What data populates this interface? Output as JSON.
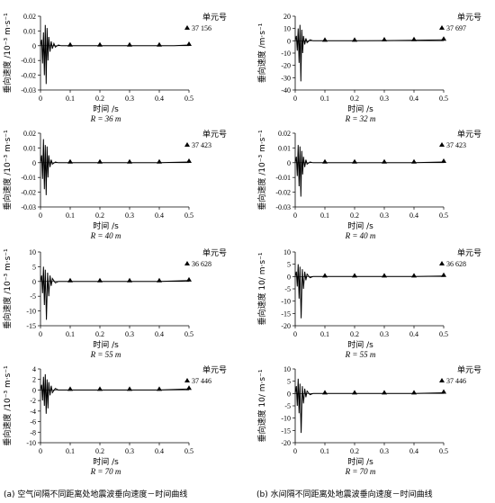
{
  "figure": {
    "captions": [
      "(a) 空气间隔不同距离处地震波垂向速度－时间曲线",
      "(b) 水间隔不同距离处地震波垂向速度－时间曲线"
    ]
  },
  "chart_data": [
    {
      "type": "line",
      "id": "a1",
      "col": 0,
      "row": 0,
      "ylabel": "垂向速度 /10⁻³ m·s⁻¹",
      "xlabel": "时间 /s",
      "caption": "R = 36 m",
      "xlim": [
        0,
        0.5
      ],
      "ylim": [
        -0.03,
        0.02
      ],
      "xticks": [
        0,
        0.1,
        0.2,
        0.3,
        0.4,
        0.5
      ],
      "xticklabels": [
        "0",
        "0.1",
        "0.2",
        "0.3",
        "0.4",
        "0.5"
      ],
      "yticks": [
        -0.03,
        -0.02,
        -0.01,
        0,
        0.01,
        0.02
      ],
      "yticklabels": [
        "-0.03",
        "-0.02",
        "-0.01",
        "0",
        "0.01",
        "0.02"
      ],
      "legend": {
        "title": "单元号",
        "label": "37 156",
        "marker": "triangle"
      },
      "series": [
        {
          "x": [
            0,
            0.004,
            0.007,
            0.01,
            0.013,
            0.016,
            0.019,
            0.022,
            0.025,
            0.028,
            0.032,
            0.036,
            0.04,
            0.045,
            0.05,
            0.06,
            0.07,
            0.08,
            0.1,
            0.15,
            0.2,
            0.25,
            0.3,
            0.35,
            0.4,
            0.45,
            0.5
          ],
          "y": [
            0,
            0.004,
            -0.012,
            0.009,
            -0.02,
            0.014,
            -0.026,
            0.012,
            -0.01,
            0.006,
            -0.004,
            0.003,
            -0.002,
            0.0015,
            -0.001,
            0.0005,
            0,
            0,
            0,
            0,
            0,
            0,
            0,
            0,
            0,
            0,
            0.0005
          ],
          "markers_x": [
            0.1,
            0.2,
            0.3,
            0.4,
            0.5
          ]
        }
      ]
    },
    {
      "type": "line",
      "id": "b1",
      "col": 1,
      "row": 0,
      "ylabel": "垂向速度 /m·s⁻¹",
      "xlabel": "时间 /s",
      "caption": "R = 32 m",
      "xlim": [
        0,
        0.5
      ],
      "ylim": [
        -40,
        20
      ],
      "xticks": [
        0,
        0.1,
        0.2,
        0.3,
        0.4,
        0.5
      ],
      "xticklabels": [
        "0",
        "0.1",
        "0.2",
        "0.3",
        "0.4",
        "0.5"
      ],
      "yticks": [
        -40,
        -30,
        -20,
        -10,
        0,
        10,
        20
      ],
      "yticklabels": [
        "-40",
        "-30",
        "-20",
        "-10",
        "0",
        "10",
        "20"
      ],
      "legend": {
        "title": "单元号",
        "label": "37 697",
        "marker": "triangle"
      },
      "series": [
        {
          "x": [
            0,
            0.004,
            0.007,
            0.01,
            0.013,
            0.016,
            0.019,
            0.022,
            0.025,
            0.028,
            0.032,
            0.036,
            0.04,
            0.05,
            0.06,
            0.08,
            0.1,
            0.2,
            0.3,
            0.4,
            0.5
          ],
          "y": [
            0,
            4,
            -8,
            10,
            -18,
            13,
            -33,
            9,
            -10,
            4,
            -3,
            2,
            -1.5,
            0.8,
            0,
            0,
            0,
            0,
            0.2,
            0.4,
            0.8
          ],
          "markers_x": [
            0.1,
            0.2,
            0.3,
            0.4,
            0.5
          ]
        }
      ]
    },
    {
      "type": "line",
      "id": "a2",
      "col": 0,
      "row": 1,
      "ylabel": "垂向速度 /10⁻³ m·s⁻¹",
      "xlabel": "时间 /s",
      "caption": "R = 40 m",
      "xlim": [
        0,
        0.5
      ],
      "ylim": [
        -0.03,
        0.02
      ],
      "xticks": [
        0,
        0.1,
        0.2,
        0.3,
        0.4,
        0.5
      ],
      "xticklabels": [
        "0",
        "0.1",
        "0.2",
        "0.3",
        "0.4",
        "0.5"
      ],
      "yticks": [
        -0.03,
        -0.02,
        -0.01,
        0,
        0.01,
        0.02
      ],
      "yticklabels": [
        "-0.03",
        "-0.02",
        "-0.01",
        "0",
        "0.01",
        "0.02"
      ],
      "legend": {
        "title": "单元号",
        "label": "37 423",
        "marker": "triangle"
      },
      "series": [
        {
          "x": [
            0,
            0.004,
            0.007,
            0.01,
            0.013,
            0.016,
            0.019,
            0.022,
            0.025,
            0.028,
            0.032,
            0.036,
            0.04,
            0.05,
            0.06,
            0.08,
            0.1,
            0.2,
            0.3,
            0.4,
            0.5
          ],
          "y": [
            0,
            0.005,
            -0.011,
            0.016,
            -0.018,
            0.012,
            -0.022,
            0.011,
            -0.01,
            0.005,
            -0.003,
            0.002,
            -0.001,
            0.0005,
            0,
            0,
            0,
            0,
            0,
            0,
            0.0005
          ],
          "markers_x": [
            0.1,
            0.2,
            0.3,
            0.4,
            0.5
          ]
        }
      ]
    },
    {
      "type": "line",
      "id": "b2",
      "col": 1,
      "row": 1,
      "ylabel": "垂向速度 /10⁻³ m·s⁻¹",
      "xlabel": "时间 /s",
      "caption": "R = 40 m",
      "xlim": [
        0,
        0.5
      ],
      "ylim": [
        -0.03,
        0.02
      ],
      "xticks": [
        0,
        0.1,
        0.2,
        0.3,
        0.4,
        0.5
      ],
      "xticklabels": [
        "0",
        "0.1",
        "0.2",
        "0.3",
        "0.4",
        "0.5"
      ],
      "yticks": [
        -0.03,
        -0.02,
        -0.01,
        0,
        0.01,
        0.02
      ],
      "yticklabels": [
        "-0.03",
        "-0.02",
        "-0.01",
        "0",
        "0.01",
        "0.02"
      ],
      "legend": {
        "title": "单元号",
        "label": "37 423",
        "marker": "triangle"
      },
      "series": [
        {
          "x": [
            0,
            0.004,
            0.007,
            0.01,
            0.013,
            0.016,
            0.019,
            0.022,
            0.025,
            0.028,
            0.032,
            0.036,
            0.04,
            0.05,
            0.06,
            0.08,
            0.1,
            0.2,
            0.3,
            0.4,
            0.5
          ],
          "y": [
            0,
            0.004,
            -0.009,
            0.012,
            -0.016,
            0.011,
            -0.023,
            0.008,
            -0.008,
            0.004,
            -0.003,
            0.002,
            -0.001,
            0.0005,
            0,
            0,
            0,
            0,
            0,
            0,
            0.0005
          ],
          "markers_x": [
            0.1,
            0.2,
            0.3,
            0.4,
            0.5
          ]
        }
      ]
    },
    {
      "type": "line",
      "id": "a3",
      "col": 0,
      "row": 2,
      "ylabel": "垂向速度 /10⁻³ m·s⁻¹",
      "xlabel": "时间 /s",
      "caption": "R = 55 m",
      "xlim": [
        0,
        0.5
      ],
      "ylim": [
        -15,
        10
      ],
      "xticks": [
        0,
        0.1,
        0.2,
        0.3,
        0.4,
        0.5
      ],
      "xticklabels": [
        "0",
        "0.1",
        "0.2",
        "0.3",
        "0.4",
        "0.5"
      ],
      "yticks": [
        -15,
        -10,
        -5,
        0,
        5,
        10
      ],
      "yticklabels": [
        "-15",
        "-10",
        "-5",
        "0",
        "5",
        "10"
      ],
      "legend": {
        "title": "单元号",
        "label": "36 628",
        "marker": "triangle"
      },
      "series": [
        {
          "x": [
            0,
            0.004,
            0.007,
            0.01,
            0.013,
            0.016,
            0.02,
            0.024,
            0.028,
            0.032,
            0.036,
            0.04,
            0.05,
            0.06,
            0.08,
            0.1,
            0.2,
            0.3,
            0.4,
            0.5
          ],
          "y": [
            0,
            2,
            -4,
            5,
            -8,
            4,
            -13,
            3,
            -5,
            2,
            -1.5,
            1,
            -0.5,
            0,
            0,
            0,
            0,
            0,
            0,
            0.3
          ],
          "markers_x": [
            0.1,
            0.2,
            0.3,
            0.4,
            0.5
          ]
        }
      ]
    },
    {
      "type": "line",
      "id": "b3",
      "col": 1,
      "row": 2,
      "ylabel": "垂向速度 10/ m·s⁻¹",
      "xlabel": "时间 /s",
      "caption": "R = 55 m",
      "xlim": [
        0,
        0.5
      ],
      "ylim": [
        -20,
        10
      ],
      "xticks": [
        0,
        0.1,
        0.2,
        0.3,
        0.4,
        0.5
      ],
      "xticklabels": [
        "0",
        "0.1",
        "0.2",
        "0.3",
        "0.4",
        "0.5"
      ],
      "yticks": [
        -20,
        -15,
        -10,
        -5,
        0,
        5,
        10
      ],
      "yticklabels": [
        "-20",
        "-15",
        "-10",
        "-5",
        "0",
        "5",
        "10"
      ],
      "legend": {
        "title": "单元号",
        "label": "36 628",
        "marker": "triangle"
      },
      "series": [
        {
          "x": [
            0,
            0.004,
            0.007,
            0.01,
            0.013,
            0.016,
            0.02,
            0.024,
            0.028,
            0.032,
            0.036,
            0.04,
            0.05,
            0.06,
            0.08,
            0.1,
            0.2,
            0.3,
            0.4,
            0.5
          ],
          "y": [
            0,
            2,
            -4,
            5,
            -9,
            4,
            -17,
            3,
            -5,
            2,
            -1.5,
            1,
            -0.5,
            0,
            0,
            0,
            0,
            0,
            0,
            0.2
          ],
          "markers_x": [
            0.1,
            0.2,
            0.3,
            0.4,
            0.5
          ]
        }
      ]
    },
    {
      "type": "line",
      "id": "a4",
      "col": 0,
      "row": 3,
      "ylabel": "垂向速度 /10⁻³ m·s⁻¹",
      "xlabel": "时间 /s",
      "caption": "R = 70 m",
      "xlim": [
        0,
        0.5
      ],
      "ylim": [
        -10,
        4
      ],
      "xticks": [
        0,
        0.1,
        0.2,
        0.3,
        0.4,
        0.5
      ],
      "xticklabels": [
        "0",
        "0.1",
        "0.2",
        "0.3",
        "0.4",
        "0.5"
      ],
      "yticks": [
        -10,
        -8,
        -6,
        -4,
        -2,
        0,
        2,
        4
      ],
      "yticklabels": [
        "-10",
        "-8",
        "-6",
        "-4",
        "-2",
        "0",
        "2",
        "4"
      ],
      "legend": {
        "title": "单元号",
        "label": "37 446",
        "marker": "triangle"
      },
      "series": [
        {
          "x": [
            0,
            0.004,
            0.007,
            0.01,
            0.013,
            0.016,
            0.019,
            0.022,
            0.025,
            0.028,
            0.032,
            0.036,
            0.04,
            0.05,
            0.06,
            0.08,
            0.1,
            0.2,
            0.3,
            0.4,
            0.5
          ],
          "y": [
            0,
            1,
            -2,
            2.5,
            -3,
            3,
            -4.5,
            2,
            -3.5,
            1.5,
            -1,
            0.8,
            -0.5,
            0.3,
            0,
            0,
            0,
            0,
            0,
            0,
            0.2
          ],
          "markers_x": [
            0.1,
            0.2,
            0.3,
            0.4,
            0.5
          ]
        }
      ]
    },
    {
      "type": "line",
      "id": "b4",
      "col": 1,
      "row": 3,
      "ylabel": "垂向速度 10/ m·s⁻¹",
      "xlabel": "时间 /s",
      "caption": "R = 70 m",
      "xlim": [
        0,
        0.5
      ],
      "ylim": [
        -20,
        10
      ],
      "xticks": [
        0,
        0.1,
        0.2,
        0.3,
        0.4,
        0.5
      ],
      "xticklabels": [
        "0",
        "0.1",
        "0.2",
        "0.3",
        "0.4",
        "0.5"
      ],
      "yticks": [
        -20,
        -15,
        -10,
        -5,
        0,
        5,
        10
      ],
      "yticklabels": [
        "-20",
        "-15",
        "-10",
        "-5",
        "0",
        "5",
        "10"
      ],
      "legend": {
        "title": "单元号",
        "label": "37 446",
        "marker": "triangle"
      },
      "series": [
        {
          "x": [
            0,
            0.004,
            0.007,
            0.01,
            0.013,
            0.016,
            0.02,
            0.024,
            0.028,
            0.032,
            0.036,
            0.04,
            0.05,
            0.06,
            0.08,
            0.1,
            0.2,
            0.3,
            0.4,
            0.5
          ],
          "y": [
            0,
            3,
            -5,
            6,
            -8,
            4,
            -16,
            3,
            -4,
            2,
            -1.5,
            1,
            -0.5,
            0,
            0,
            0,
            0,
            0,
            0,
            0.3
          ],
          "markers_x": [
            0.1,
            0.2,
            0.3,
            0.4,
            0.5
          ]
        }
      ]
    }
  ]
}
